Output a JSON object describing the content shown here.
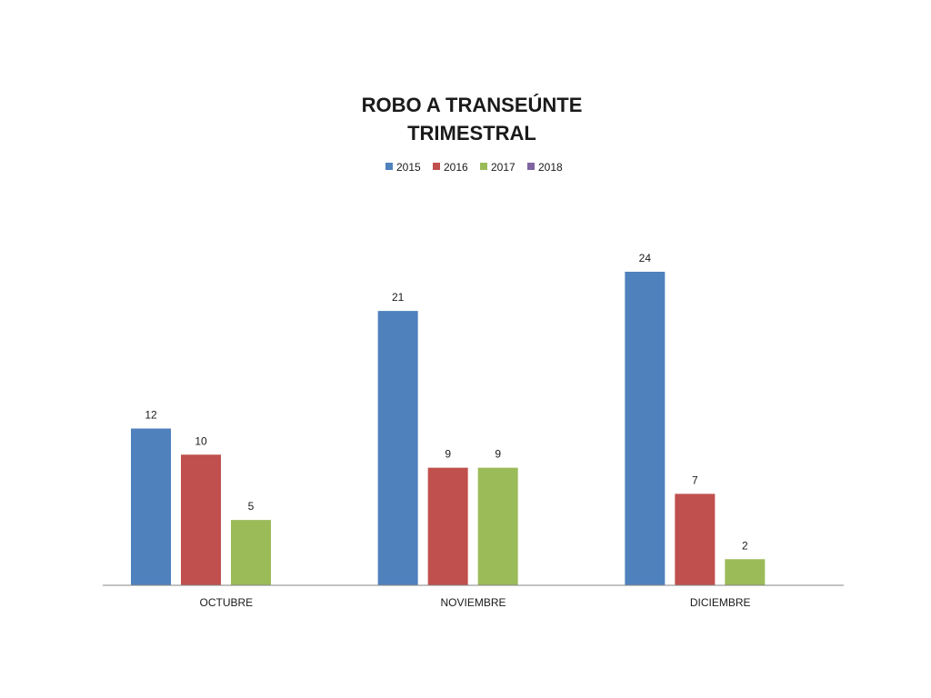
{
  "chart_data": {
    "type": "bar",
    "title_lines": [
      "ROBO A TRANSEÚNTE",
      "TRIMESTRAL"
    ],
    "categories": [
      "OCTUBRE",
      "NOVIEMBRE",
      "DICIEMBRE"
    ],
    "series": [
      {
        "name": "2015",
        "color": "#4f81bd",
        "values": [
          12,
          21,
          24
        ]
      },
      {
        "name": "2016",
        "color": "#c0504d",
        "values": [
          10,
          9,
          7
        ]
      },
      {
        "name": "2017",
        "color": "#9bbb59",
        "values": [
          5,
          9,
          2
        ]
      },
      {
        "name": "2018",
        "color": "#8064a2",
        "values": [
          null,
          null,
          null
        ]
      }
    ],
    "ylim": [
      0,
      24
    ],
    "legend_position": "top",
    "grid": false,
    "data_labels": true
  }
}
